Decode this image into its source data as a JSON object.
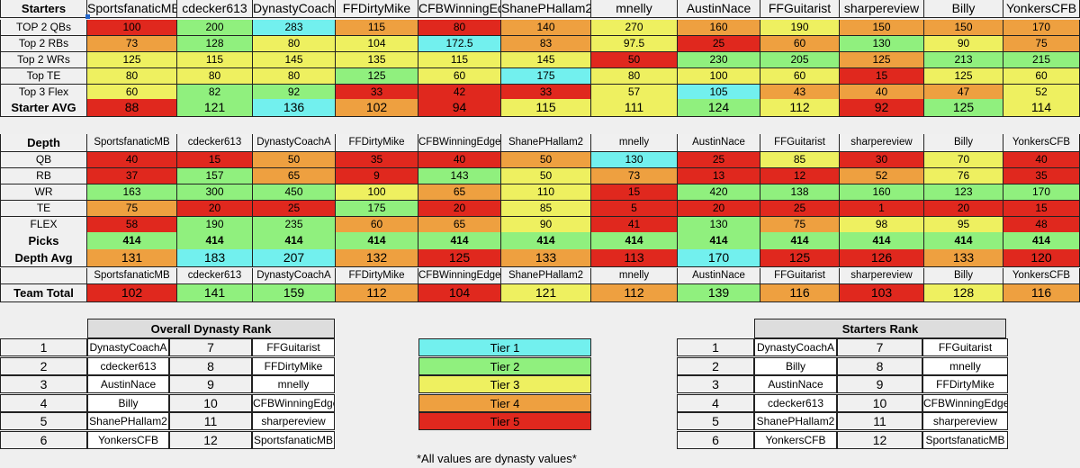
{
  "teams": [
    "SportsfanaticMB",
    "cdecker613",
    "DynastyCoachA",
    "FFDirtyMike",
    "CFBWinningEdge",
    "ShanePHallam2",
    "mnelly",
    "AustinNace",
    "FFGuitarist",
    "sharpereview",
    "Billy",
    "YonkersCFB"
  ],
  "starters": {
    "header": "Starters",
    "rows": [
      {
        "label": "TOP 2 QBs",
        "values": [
          "100",
          "200",
          "283",
          "115",
          "80",
          "140",
          "270",
          "160",
          "190",
          "150",
          "150",
          "170"
        ],
        "tiers": [
          5,
          2,
          1,
          4,
          5,
          4,
          3,
          4,
          3,
          4,
          4,
          4
        ]
      },
      {
        "label": "Top 2 RBs",
        "values": [
          "73",
          "128",
          "80",
          "104",
          "172.5",
          "83",
          "97.5",
          "25",
          "60",
          "130",
          "90",
          "75"
        ],
        "tiers": [
          4,
          2,
          3,
          3,
          1,
          4,
          3,
          5,
          4,
          2,
          3,
          4
        ]
      },
      {
        "label": "Top 2 WRs",
        "values": [
          "125",
          "115",
          "145",
          "135",
          "115",
          "145",
          "50",
          "230",
          "205",
          "125",
          "213",
          "215"
        ],
        "tiers": [
          3,
          3,
          3,
          3,
          3,
          3,
          5,
          2,
          2,
          4,
          2,
          2
        ]
      },
      {
        "label": "Top TE",
        "values": [
          "80",
          "80",
          "80",
          "125",
          "60",
          "175",
          "80",
          "100",
          "60",
          "15",
          "125",
          "60"
        ],
        "tiers": [
          3,
          3,
          3,
          2,
          3,
          1,
          3,
          3,
          3,
          5,
          3,
          3
        ]
      },
      {
        "label": "Top 3 Flex",
        "values": [
          "60",
          "82",
          "92",
          "33",
          "42",
          "33",
          "57",
          "105",
          "43",
          "40",
          "47",
          "52"
        ],
        "tiers": [
          3,
          2,
          2,
          5,
          5,
          5,
          3,
          1,
          4,
          4,
          4,
          3
        ]
      }
    ],
    "avg": {
      "label": "Starter AVG",
      "values": [
        "88",
        "121",
        "136",
        "102",
        "94",
        "115",
        "111",
        "124",
        "112",
        "92",
        "125",
        "114"
      ],
      "tiers": [
        5,
        2,
        1,
        4,
        5,
        3,
        3,
        2,
        3,
        5,
        2,
        3
      ]
    }
  },
  "depth": {
    "header": "Depth",
    "rows": [
      {
        "label": "QB",
        "values": [
          "40",
          "15",
          "50",
          "35",
          "40",
          "50",
          "130",
          "25",
          "85",
          "30",
          "70",
          "40"
        ],
        "tiers": [
          5,
          5,
          4,
          5,
          5,
          4,
          1,
          5,
          3,
          5,
          3,
          5
        ]
      },
      {
        "label": "RB",
        "values": [
          "37",
          "157",
          "65",
          "9",
          "143",
          "50",
          "73",
          "13",
          "12",
          "52",
          "76",
          "35"
        ],
        "tiers": [
          5,
          2,
          4,
          5,
          2,
          3,
          4,
          5,
          5,
          4,
          3,
          5
        ]
      },
      {
        "label": "WR",
        "values": [
          "163",
          "300",
          "450",
          "100",
          "65",
          "110",
          "15",
          "420",
          "138",
          "160",
          "123",
          "170"
        ],
        "tiers": [
          2,
          2,
          2,
          3,
          4,
          3,
          5,
          2,
          2,
          2,
          2,
          2
        ]
      },
      {
        "label": "TE",
        "values": [
          "75",
          "20",
          "25",
          "175",
          "20",
          "85",
          "5",
          "20",
          "25",
          "1",
          "20",
          "15"
        ],
        "tiers": [
          4,
          5,
          5,
          2,
          5,
          3,
          5,
          5,
          5,
          5,
          5,
          5
        ]
      },
      {
        "label": "FLEX",
        "values": [
          "58",
          "190",
          "235",
          "60",
          "65",
          "90",
          "41",
          "130",
          "75",
          "98",
          "95",
          "48"
        ],
        "tiers": [
          5,
          2,
          2,
          4,
          4,
          3,
          5,
          2,
          4,
          3,
          3,
          5
        ]
      }
    ],
    "picks": {
      "label": "Picks",
      "values": [
        "414",
        "414",
        "414",
        "414",
        "414",
        "414",
        "414",
        "414",
        "414",
        "414",
        "414",
        "414"
      ],
      "tiers": [
        2,
        2,
        2,
        2,
        2,
        2,
        2,
        2,
        2,
        2,
        2,
        2
      ]
    },
    "avg": {
      "label": "Depth Avg",
      "values": [
        "131",
        "183",
        "207",
        "132",
        "125",
        "133",
        "113",
        "170",
        "125",
        "126",
        "133",
        "120"
      ],
      "tiers": [
        4,
        1,
        1,
        4,
        5,
        4,
        5,
        1,
        5,
        5,
        4,
        5
      ]
    }
  },
  "team_total": {
    "label": "Team Total",
    "values": [
      "102",
      "141",
      "159",
      "112",
      "104",
      "121",
      "112",
      "139",
      "116",
      "103",
      "128",
      "116"
    ],
    "tiers": [
      5,
      2,
      2,
      4,
      5,
      3,
      4,
      2,
      4,
      5,
      3,
      4
    ]
  },
  "overall_rank": {
    "title": "Overall Dynasty Rank",
    "rows": [
      {
        "a": "1",
        "an": "DynastyCoachA",
        "b": "7",
        "bn": "FFGuitarist"
      },
      {
        "a": "2",
        "an": "cdecker613",
        "b": "8",
        "bn": "FFDirtyMike"
      },
      {
        "a": "3",
        "an": "AustinNace",
        "b": "9",
        "bn": "mnelly"
      },
      {
        "a": "4",
        "an": "Billy",
        "b": "10",
        "bn": "CFBWinningEdge"
      },
      {
        "a": "5",
        "an": "ShanePHallam2",
        "b": "11",
        "bn": "sharpereview"
      },
      {
        "a": "6",
        "an": "YonkersCFB",
        "b": "12",
        "bn": "SportsfanaticMB"
      }
    ]
  },
  "starters_rank": {
    "title": "Starters Rank",
    "rows": [
      {
        "a": "1",
        "an": "DynastyCoachA",
        "b": "7",
        "bn": "FFGuitarist"
      },
      {
        "a": "2",
        "an": "Billy",
        "b": "8",
        "bn": "mnelly"
      },
      {
        "a": "3",
        "an": "AustinNace",
        "b": "9",
        "bn": "FFDirtyMike"
      },
      {
        "a": "4",
        "an": "cdecker613",
        "b": "10",
        "bn": "CFBWinningEdge"
      },
      {
        "a": "5",
        "an": "ShanePHallam2",
        "b": "11",
        "bn": "sharpereview"
      },
      {
        "a": "6",
        "an": "YonkersCFB",
        "b": "12",
        "bn": "SportsfanaticMB"
      }
    ]
  },
  "legend": [
    "Tier 1",
    "Tier 2",
    "Tier 3",
    "Tier 4",
    "Tier 5"
  ],
  "colors": {
    "tier1": "#72f0ee",
    "tier2": "#90f07e",
    "tier3": "#eef060",
    "tier4": "#eea040",
    "tier5": "#e0281e"
  },
  "note": "*All values are dynasty values*"
}
